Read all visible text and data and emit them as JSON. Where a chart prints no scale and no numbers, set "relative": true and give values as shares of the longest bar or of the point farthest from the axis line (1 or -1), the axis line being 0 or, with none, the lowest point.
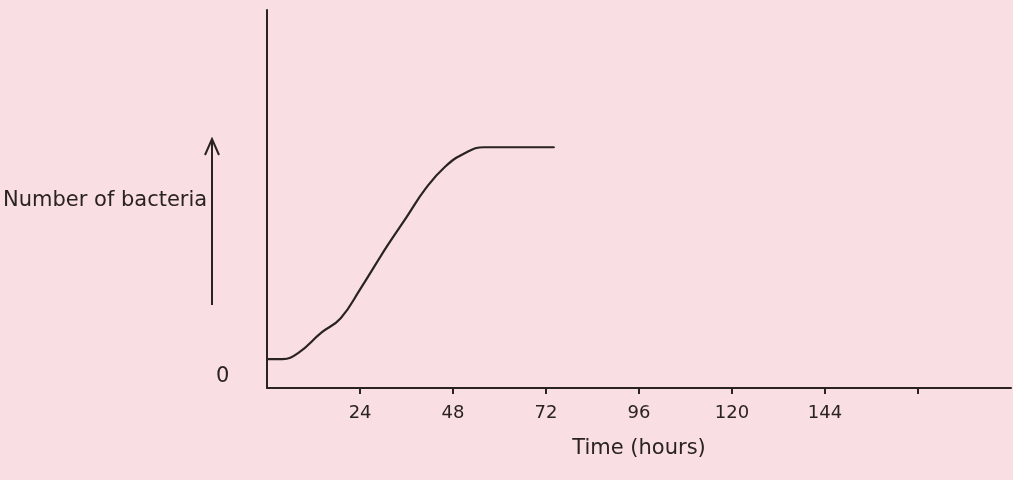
{
  "chart_data": {
    "type": "line",
    "xlabel": "Time (hours)",
    "ylabel": "Number of bacteria",
    "relative": true,
    "x": [
      0,
      4,
      8,
      14,
      19,
      24,
      31,
      36,
      41,
      46,
      51,
      56,
      74
    ],
    "series": [
      {
        "color": "#2b2222",
        "values": [
          0.12,
          0.12,
          0.145,
          0.23,
          0.29,
          0.41,
          0.59,
          0.71,
          0.83,
          0.92,
          0.975,
          1,
          1
        ]
      }
    ],
    "xlim": [
      0,
      192
    ],
    "xticks": [
      24,
      48,
      72,
      96,
      120,
      144,
      {
        "value": 168,
        "label": null
      }
    ],
    "annotations": [
      "0"
    ],
    "marker": "none",
    "line_style": "solid",
    "grid": false
  }
}
